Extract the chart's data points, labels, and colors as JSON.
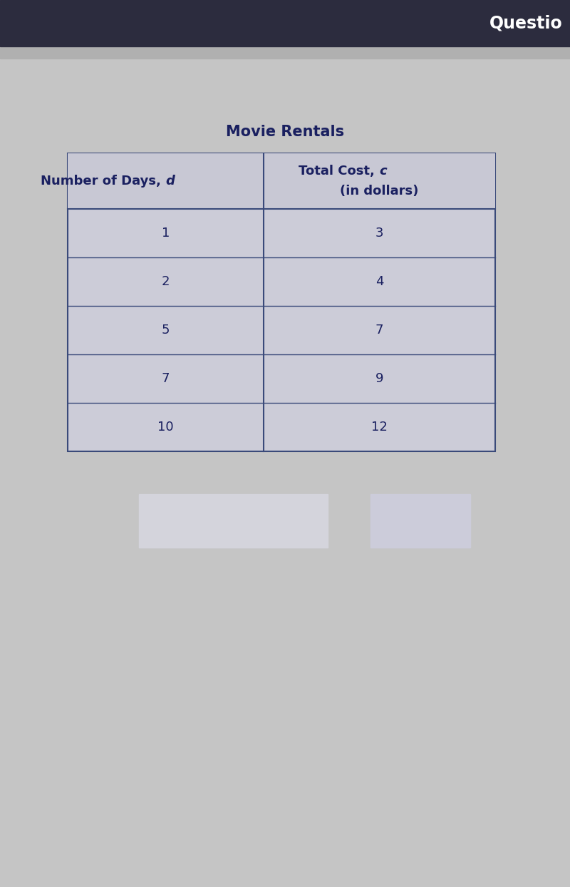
{
  "title": "Movie Rentals",
  "col1_header_prefix": "Number of Days, ",
  "col1_header_italic": "d",
  "col2_header_line1_prefix": "Total Cost, ",
  "col2_header_line1_italic": "c",
  "col2_header_line2": "(in dollars)",
  "rows": [
    [
      "1",
      "3"
    ],
    [
      "2",
      "4"
    ],
    [
      "5",
      "7"
    ],
    [
      "7",
      "9"
    ],
    [
      "10",
      "12"
    ]
  ],
  "bg_color": "#c5c5c5",
  "top_bar_color": "#2c2c3e",
  "top_band_color": "#b0b0b0",
  "header_bar_text": "Questio",
  "table_border_color": "#3a4a7a",
  "text_color": "#1a2060",
  "cell_bg_even": "#ccccd8",
  "cell_bg_odd": "#c8c8d4",
  "header_cell_bg": "#c8c8d4",
  "title_fontsize": 15,
  "header_fontsize": 13,
  "data_fontsize": 13,
  "bottom_box1_color": "#d4d4dc",
  "bottom_box2_color": "#ccccda"
}
